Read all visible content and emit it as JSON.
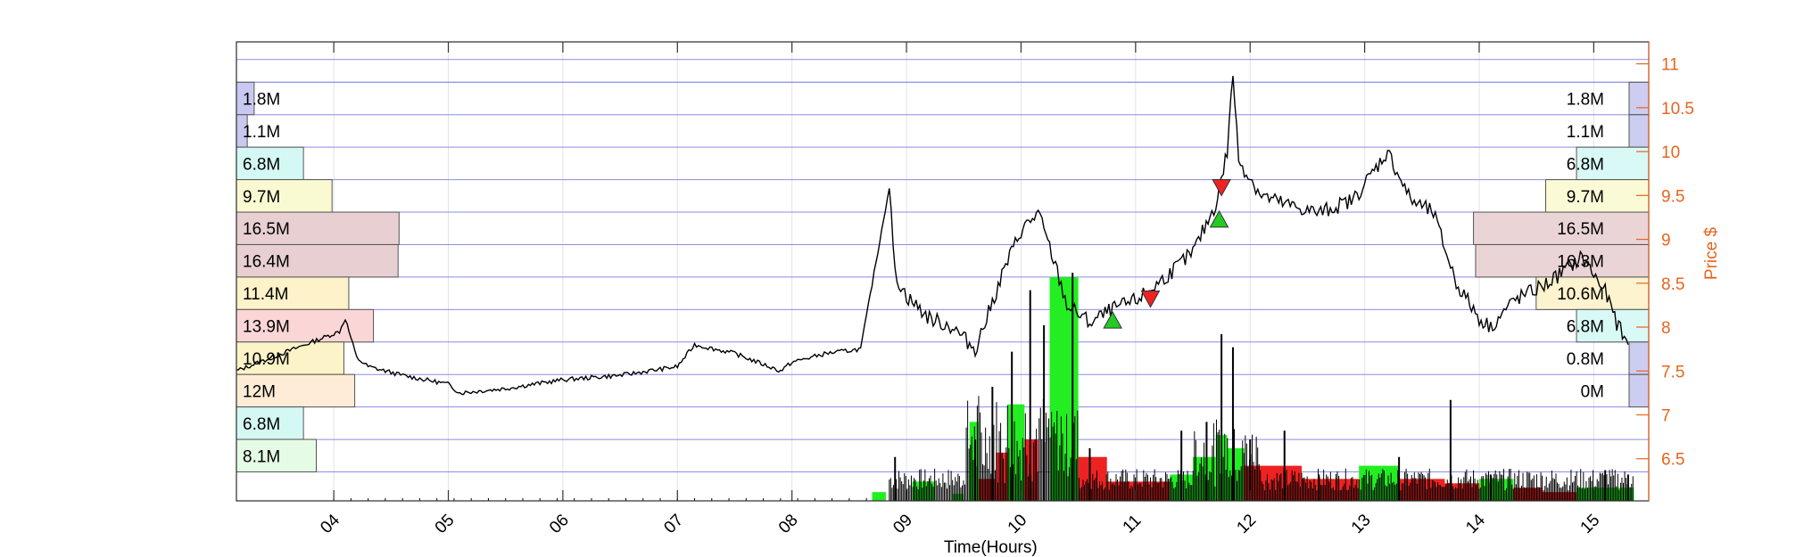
{
  "chart_data": {
    "type": "line",
    "xlabel": "Time(Hours)",
    "ylabel": "Price $",
    "x_ticks": [
      "04",
      "05",
      "06",
      "07",
      "08",
      "09",
      "10",
      "11",
      "12",
      "13",
      "14",
      "15"
    ],
    "x_tick_values": [
      4,
      5,
      6,
      7,
      8,
      9,
      10,
      11,
      12,
      13,
      14,
      15
    ],
    "xlim": [
      3.15,
      15.48
    ],
    "y_ticks": [
      "6.5",
      "7",
      "7.5",
      "8",
      "8.5",
      "9",
      "9.5",
      "10",
      "10.5",
      "11"
    ],
    "y_tick_values": [
      6.5,
      7,
      7.5,
      8,
      8.5,
      9,
      9.5,
      10,
      10.5,
      11
    ],
    "ylim": [
      6.02,
      11.25
    ],
    "y_axis_side": "right",
    "grid": true,
    "price_series": {
      "x": [
        3.15,
        4.05,
        4.1,
        4.2,
        4.3,
        4.6,
        5.0,
        5.1,
        5.5,
        6.0,
        6.5,
        7.0,
        7.15,
        7.5,
        7.9,
        8.0,
        8.3,
        8.6,
        8.85,
        8.9,
        9.0,
        9.2,
        9.4,
        9.6,
        9.7,
        9.85,
        10.0,
        10.15,
        10.3,
        10.4,
        10.5,
        10.6,
        10.8,
        11.0,
        11.2,
        11.5,
        11.7,
        11.8,
        11.85,
        11.9,
        12.1,
        12.3,
        12.6,
        12.9,
        13.2,
        13.4,
        13.6,
        13.8,
        14.0,
        14.1,
        14.3,
        14.6,
        14.9,
        15.1,
        15.2,
        15.3
      ],
      "y": [
        7.5,
        7.95,
        8.1,
        7.65,
        7.55,
        7.45,
        7.35,
        7.25,
        7.3,
        7.4,
        7.45,
        7.55,
        7.8,
        7.7,
        7.5,
        7.6,
        7.7,
        7.75,
        9.6,
        8.6,
        8.35,
        8.1,
        8.0,
        7.75,
        8.1,
        8.65,
        9.1,
        9.3,
        8.7,
        8.25,
        8.15,
        8.05,
        8.2,
        8.3,
        8.5,
        8.85,
        9.4,
        10.0,
        10.9,
        9.9,
        9.5,
        9.4,
        9.3,
        9.45,
        10.0,
        9.45,
        9.3,
        8.5,
        8.1,
        8.0,
        8.3,
        8.5,
        8.8,
        8.4,
        8.05,
        7.8
      ]
    },
    "volume_profile_left": [
      {
        "label": "1.8M",
        "value": 1.8,
        "price_from": 10.42,
        "price_to": 10.79,
        "color": "#c8c8f0"
      },
      {
        "label": "1.1M",
        "value": 1.1,
        "price_from": 10.05,
        "price_to": 10.42,
        "color": "#c8c8f0"
      },
      {
        "label": "6.8M",
        "value": 6.8,
        "price_from": 9.68,
        "price_to": 10.05,
        "color": "#d4f8f4"
      },
      {
        "label": "9.7M",
        "value": 9.7,
        "price_from": 9.31,
        "price_to": 9.68,
        "color": "#fafad2"
      },
      {
        "label": "16.5M",
        "value": 16.5,
        "price_from": 8.94,
        "price_to": 9.31,
        "color": "#e8cfd2"
      },
      {
        "label": "16.4M",
        "value": 16.4,
        "price_from": 8.57,
        "price_to": 8.94,
        "color": "#e8cfd2"
      },
      {
        "label": "11.4M",
        "value": 11.4,
        "price_from": 8.2,
        "price_to": 8.57,
        "color": "#fdf2c9"
      },
      {
        "label": "13.9M",
        "value": 13.9,
        "price_from": 7.83,
        "price_to": 8.2,
        "color": "#fbd6d6"
      },
      {
        "label": "10.9M",
        "value": 10.9,
        "price_from": 7.46,
        "price_to": 7.83,
        "color": "#fcf4c8"
      },
      {
        "label": "12M",
        "value": 12,
        "price_from": 7.09,
        "price_to": 7.46,
        "color": "#feecd6"
      },
      {
        "label": "6.8M",
        "value": 6.8,
        "price_from": 6.72,
        "price_to": 7.09,
        "color": "#d4f8f4"
      },
      {
        "label": "8.1M",
        "value": 8.1,
        "price_from": 6.35,
        "price_to": 6.72,
        "color": "#e6fbe6"
      }
    ],
    "volume_profile_right": [
      {
        "label": "1.8M",
        "value": 1.8,
        "price_from": 10.42,
        "price_to": 10.79,
        "color": "#c8c8f0"
      },
      {
        "label": "1.1M",
        "value": 1.1,
        "price_from": 10.05,
        "price_to": 10.42,
        "color": "#c8c8f0"
      },
      {
        "label": "6.8M",
        "value": 6.8,
        "price_from": 9.68,
        "price_to": 10.05,
        "color": "#d4f8f4"
      },
      {
        "label": "9.7M",
        "value": 9.7,
        "price_from": 9.31,
        "price_to": 9.68,
        "color": "#fafad2"
      },
      {
        "label": "16.5M",
        "value": 16.5,
        "price_from": 8.94,
        "price_to": 9.31,
        "color": "#e8cfd2"
      },
      {
        "label": "16.3M",
        "value": 16.3,
        "price_from": 8.57,
        "price_to": 8.94,
        "color": "#e8cfd2"
      },
      {
        "label": "10.6M",
        "value": 10.6,
        "price_from": 8.2,
        "price_to": 8.57,
        "color": "#fdf2c9"
      },
      {
        "label": "6.8M",
        "value": 6.8,
        "price_from": 7.83,
        "price_to": 8.2,
        "color": "#d4f8f4"
      },
      {
        "label": "0.8M",
        "value": 0.8,
        "price_from": 7.46,
        "price_to": 7.83,
        "color": "#c8c8f0"
      },
      {
        "label": "0M",
        "value": 0,
        "price_from": 7.09,
        "price_to": 7.46,
        "color": "#c8c8f0"
      }
    ],
    "volume_bars": [
      {
        "x": 8.7,
        "w": 0.12,
        "h": 0.1,
        "color": "#22ee22"
      },
      {
        "x": 9.05,
        "w": 0.2,
        "h": 0.22,
        "color": "#22ee22"
      },
      {
        "x": 9.4,
        "w": 0.1,
        "h": 0.08,
        "color": "#22ee22"
      },
      {
        "x": 9.55,
        "w": 0.08,
        "h": 0.9,
        "color": "#22ee22"
      },
      {
        "x": 9.63,
        "w": 0.15,
        "h": 0.25,
        "color": "#ee2222"
      },
      {
        "x": 9.78,
        "w": 0.1,
        "h": 0.55,
        "color": "#ee2222"
      },
      {
        "x": 9.88,
        "w": 0.15,
        "h": 1.1,
        "color": "#22ee22"
      },
      {
        "x": 10.03,
        "w": 0.12,
        "h": 0.7,
        "color": "#ee2222"
      },
      {
        "x": 10.25,
        "w": 0.25,
        "h": 2.55,
        "color": "#22ee22"
      },
      {
        "x": 10.5,
        "w": 0.25,
        "h": 0.5,
        "color": "#ee2222"
      },
      {
        "x": 10.75,
        "w": 0.55,
        "h": 0.22,
        "color": "#ee2222"
      },
      {
        "x": 11.3,
        "w": 0.2,
        "h": 0.3,
        "color": "#22ee22"
      },
      {
        "x": 11.5,
        "w": 0.2,
        "h": 0.5,
        "color": "#22ee22"
      },
      {
        "x": 11.7,
        "w": 0.1,
        "h": 0.75,
        "color": "#22ee22"
      },
      {
        "x": 11.8,
        "w": 0.15,
        "h": 0.6,
        "color": "#22ee22"
      },
      {
        "x": 11.95,
        "w": 0.5,
        "h": 0.4,
        "color": "#ee2222"
      },
      {
        "x": 12.45,
        "w": 0.5,
        "h": 0.25,
        "color": "#ee2222"
      },
      {
        "x": 12.95,
        "w": 0.35,
        "h": 0.4,
        "color": "#22ee22"
      },
      {
        "x": 13.3,
        "w": 0.4,
        "h": 0.25,
        "color": "#ee2222"
      },
      {
        "x": 13.7,
        "w": 0.3,
        "h": 0.2,
        "color": "#ee2222"
      },
      {
        "x": 14.0,
        "w": 0.3,
        "h": 0.25,
        "color": "#22ee22"
      },
      {
        "x": 14.3,
        "w": 0.25,
        "h": 0.15,
        "color": "#ee2222"
      },
      {
        "x": 14.55,
        "w": 0.3,
        "h": 0.1,
        "color": "#ee2222"
      },
      {
        "x": 14.85,
        "w": 0.5,
        "h": 0.15,
        "color": "#22ee22"
      }
    ],
    "volume_spikes": [
      {
        "x": 8.9,
        "h": 0.5
      },
      {
        "x": 9.6,
        "h": 0.7
      },
      {
        "x": 9.75,
        "h": 1.3
      },
      {
        "x": 9.92,
        "h": 1.7
      },
      {
        "x": 10.08,
        "h": 2.4
      },
      {
        "x": 10.2,
        "h": 2.0
      },
      {
        "x": 10.45,
        "h": 2.6
      },
      {
        "x": 10.6,
        "h": 0.6
      },
      {
        "x": 11.4,
        "h": 0.8
      },
      {
        "x": 11.62,
        "h": 0.9
      },
      {
        "x": 11.75,
        "h": 1.9
      },
      {
        "x": 11.85,
        "h": 1.75
      },
      {
        "x": 12.0,
        "h": 0.7
      },
      {
        "x": 12.3,
        "h": 0.8
      },
      {
        "x": 12.6,
        "h": 0.3
      },
      {
        "x": 13.3,
        "h": 0.5
      },
      {
        "x": 13.75,
        "h": 1.15
      },
      {
        "x": 14.1,
        "h": 0.3
      },
      {
        "x": 15.1,
        "h": 0.35
      },
      {
        "x": 15.3,
        "h": 0.3
      }
    ],
    "markers": [
      {
        "type": "buy",
        "x": 10.8,
        "price": 8.07,
        "color": "#22cc22"
      },
      {
        "type": "sell",
        "x": 11.13,
        "price": 8.33,
        "color": "#ee2222"
      },
      {
        "type": "buy",
        "x": 11.73,
        "price": 9.22,
        "color": "#22cc22"
      },
      {
        "type": "sell",
        "x": 11.75,
        "price": 9.6,
        "color": "#ee2222"
      }
    ],
    "colors": {
      "right_axis": "#e8641e",
      "grid": "#8c8ce6",
      "price_line": "#000000"
    }
  }
}
